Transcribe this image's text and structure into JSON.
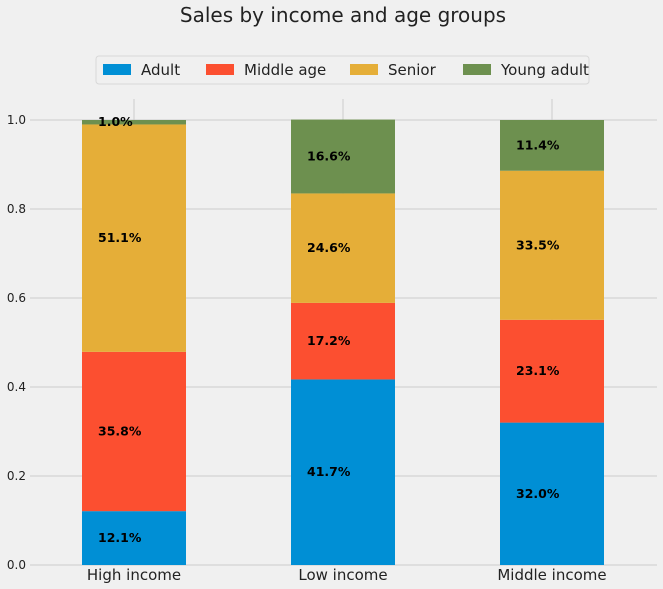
{
  "chart_data": {
    "type": "bar",
    "stacked": true,
    "normalized": true,
    "title": "Sales by income and age groups",
    "xlabel": "",
    "ylabel": "",
    "categories": [
      "High income",
      "Low income",
      "Middle income"
    ],
    "series": [
      {
        "name": "Adult",
        "color": "#008fd5",
        "values": [
          0.121,
          0.417,
          0.32
        ],
        "labels": [
          "12.1%",
          "41.7%",
          "32.0%"
        ]
      },
      {
        "name": "Middle age",
        "color": "#fc4f30",
        "values": [
          0.358,
          0.172,
          0.231
        ],
        "labels": [
          "35.8%",
          "17.2%",
          "23.1%"
        ]
      },
      {
        "name": "Senior",
        "color": "#e5ae38",
        "values": [
          0.511,
          0.246,
          0.335
        ],
        "labels": [
          "51.1%",
          "24.6%",
          "33.5%"
        ]
      },
      {
        "name": "Young adult",
        "color": "#6d904f",
        "values": [
          0.01,
          0.166,
          0.114
        ],
        "labels": [
          "1.0%",
          "16.6%",
          "11.4%"
        ]
      }
    ],
    "ylim": [
      0,
      1.05
    ],
    "yticks": [
      "0.0",
      "0.2",
      "0.4",
      "0.6",
      "0.8",
      "1.0"
    ],
    "grid": true,
    "legend_position": "top-center"
  }
}
